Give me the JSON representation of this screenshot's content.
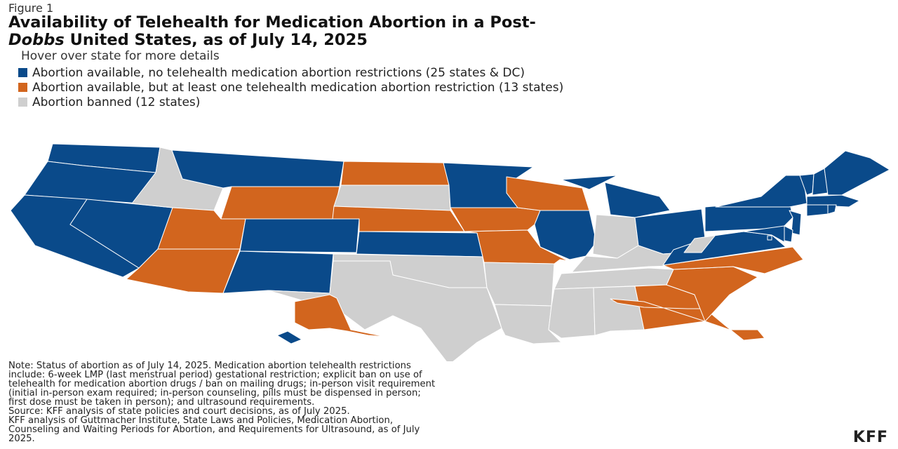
{
  "figure_label": "Figure 1",
  "title": {
    "line1": "Availability of Telehealth for Medication Abortion in a Post-",
    "line2_italic": "Dobbs",
    "line2_rest": " United States, as of July 14, 2025"
  },
  "subtitle": "Hover over state for more details",
  "legend": [
    {
      "label": "Abortion available, no telehealth medication abortion restrictions (25 states & DC)",
      "color": "#0a4a8a"
    },
    {
      "label": "Abortion available, but at least one telehealth medication abortion restriction (13 states)",
      "color": "#d2651e"
    },
    {
      "label": "Abortion banned (12 states)",
      "color": "#cfcfcf"
    }
  ],
  "colors": {
    "no_restrictions": "#0a4a8a",
    "restriction": "#d2651e",
    "banned": "#cfcfcf"
  },
  "states": {
    "WA": "no_restrictions",
    "OR": "no_restrictions",
    "CA": "no_restrictions",
    "NV": "no_restrictions",
    "ID": "banned",
    "MT": "no_restrictions",
    "WY": "restriction",
    "UT": "restriction",
    "AZ": "restriction",
    "CO": "no_restrictions",
    "NM": "no_restrictions",
    "ND": "restriction",
    "SD": "banned",
    "NE": "restriction",
    "KS": "no_restrictions",
    "OK": "banned",
    "TX": "banned",
    "MN": "no_restrictions",
    "IA": "restriction",
    "MO": "restriction",
    "AR": "banned",
    "LA": "banned",
    "WI": "restriction",
    "IL": "no_restrictions",
    "MI": "no_restrictions",
    "IN": "banned",
    "OH": "no_restrictions",
    "KY": "banned",
    "TN": "banned",
    "MS": "banned",
    "AL": "banned",
    "GA": "restriction",
    "FL": "restriction",
    "SC": "restriction",
    "NC": "restriction",
    "VA": "no_restrictions",
    "WV": "banned",
    "PA": "no_restrictions",
    "NY": "no_restrictions",
    "VT": "no_restrictions",
    "NH": "no_restrictions",
    "ME": "no_restrictions",
    "MA": "no_restrictions",
    "RI": "no_restrictions",
    "CT": "no_restrictions",
    "NJ": "no_restrictions",
    "DE": "no_restrictions",
    "MD": "no_restrictions",
    "DC": "no_restrictions",
    "AK": "restriction",
    "HI": "no_restrictions"
  },
  "note_lines": [
    "Note: Status of abortion as of July 14, 2025. Medication abortion telehealth restrictions",
    "include: 6-week LMP (last menstrual period) gestational restriction; explicit ban on use of",
    "telehealth for medication abortion drugs / ban on mailing drugs; in-person visit requirement",
    "(initial in-person exam required; in-person counseling, pills must be dispensed in person;",
    "first dose must be taken in person); and ultrasound requirements."
  ],
  "source_lines": [
    "Source: KFF analysis of state policies and court decisions, as of July 2025.",
    "KFF analysis of Guttmacher Institute, State Laws and Policies, Medication Abortion,",
    "Counseling and Waiting Periods for Abortion, and Requirements for Ultrasound, as of July",
    "2025."
  ],
  "logo": "KFF"
}
